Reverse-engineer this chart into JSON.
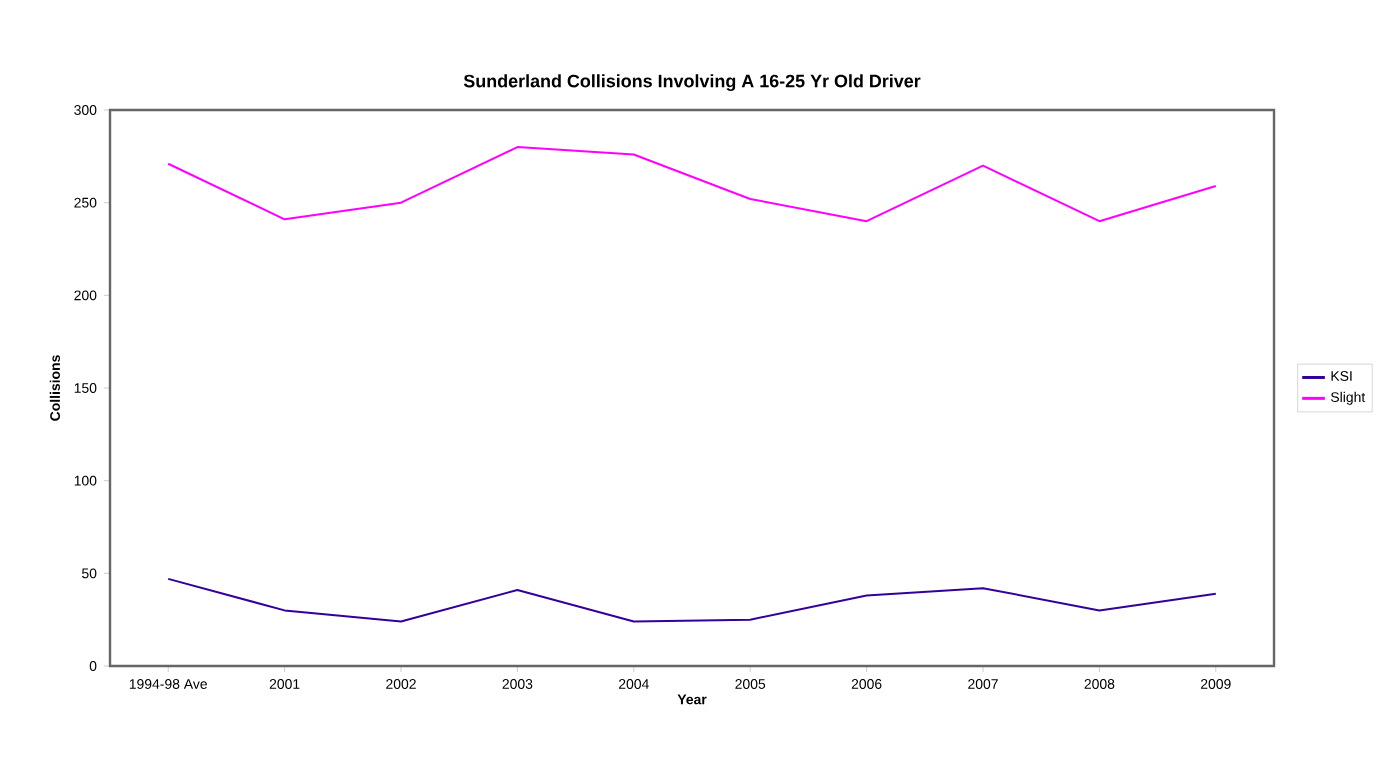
{
  "chart_data": {
    "type": "line",
    "title": "Sunderland Collisions Involving A 16-25 Yr Old Driver",
    "xlabel": "Year",
    "ylabel": "Collisions",
    "categories": [
      "1994-98 Ave",
      "2001",
      "2002",
      "2003",
      "2004",
      "2005",
      "2006",
      "2007",
      "2008",
      "2009"
    ],
    "series": [
      {
        "name": "KSI",
        "color": "#330099",
        "values": [
          47,
          30,
          24,
          41,
          24,
          25,
          38,
          42,
          30,
          39
        ]
      },
      {
        "name": "Slight",
        "color": "#ff00ff",
        "values": [
          271,
          241,
          250,
          280,
          276,
          252,
          240,
          270,
          240,
          259
        ]
      }
    ],
    "ylim": [
      0,
      300
    ],
    "yticks": [
      0,
      50,
      100,
      150,
      200,
      250,
      300
    ],
    "legend": "right",
    "grid": false,
    "marker": "none",
    "line_style": "solid"
  }
}
